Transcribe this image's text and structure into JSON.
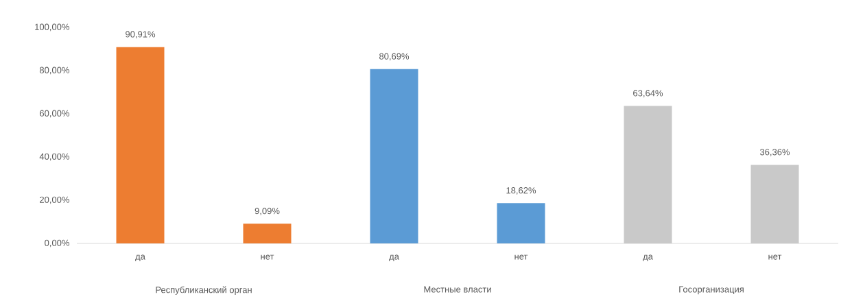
{
  "chart_data": {
    "type": "bar",
    "categories": [
      "да",
      "нет",
      "да",
      "нет",
      "да",
      "нет"
    ],
    "values": [
      90.91,
      9.09,
      80.69,
      18.62,
      63.64,
      36.36
    ],
    "colors": [
      "#ed7d31",
      "#ed7d31",
      "#5b9bd5",
      "#5b9bd5",
      "#c9c9c9",
      "#c9c9c9"
    ],
    "value_labels": [
      "90,91%",
      "9,09%",
      "80,69%",
      "18,62%",
      "63,64%",
      "36,36%"
    ],
    "annotations": [
      "Республиканский орган",
      "Местные власти",
      "Госорганизация"
    ],
    "ylim": [
      0,
      100
    ],
    "yticks": [
      {
        "value": 0,
        "label": "0,00%"
      },
      {
        "value": 20,
        "label": "20,00%"
      },
      {
        "value": 40,
        "label": "40,00%"
      },
      {
        "value": 60,
        "label": "60,00%"
      },
      {
        "value": 80,
        "label": "80,00%"
      },
      {
        "value": 100,
        "label": "100,00%"
      }
    ],
    "grid": false
  }
}
